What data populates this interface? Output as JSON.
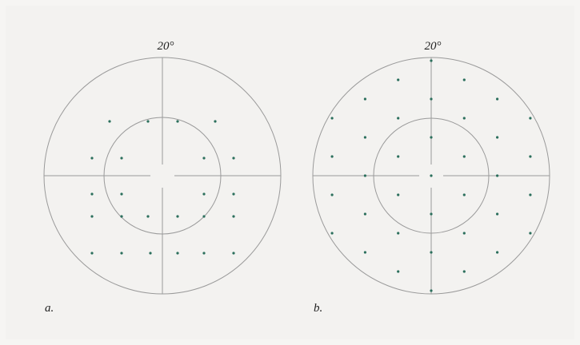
{
  "panels": [
    {
      "angle_label": "20°",
      "caption": "a."
    },
    {
      "angle_label": "20°",
      "caption": "b."
    }
  ]
}
